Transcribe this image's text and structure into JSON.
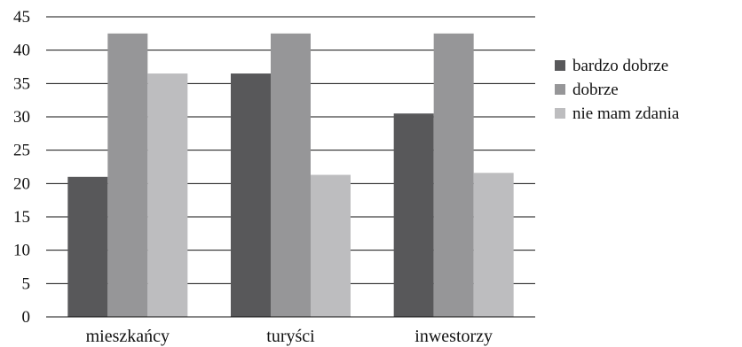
{
  "chart_data": {
    "type": "bar",
    "title": "",
    "xlabel": "",
    "ylabel": "",
    "categories": [
      "mieszkańcy",
      "turyści",
      "inwestorzy"
    ],
    "series": [
      {
        "name": "bardzo dobrze",
        "values": [
          21,
          36.5,
          30.5
        ],
        "color": "#58585a"
      },
      {
        "name": "dobrze",
        "values": [
          42.5,
          42.5,
          42.5
        ],
        "color": "#969698"
      },
      {
        "name": "nie mam zdania",
        "values": [
          36.5,
          21.3,
          21.6
        ],
        "color": "#bdbdbf"
      }
    ],
    "ylim": [
      0,
      45
    ],
    "yticks": [
      "0",
      "5",
      "10",
      "15",
      "20",
      "25",
      "30",
      "35",
      "40",
      "45"
    ],
    "grid": true,
    "legend": "right"
  }
}
